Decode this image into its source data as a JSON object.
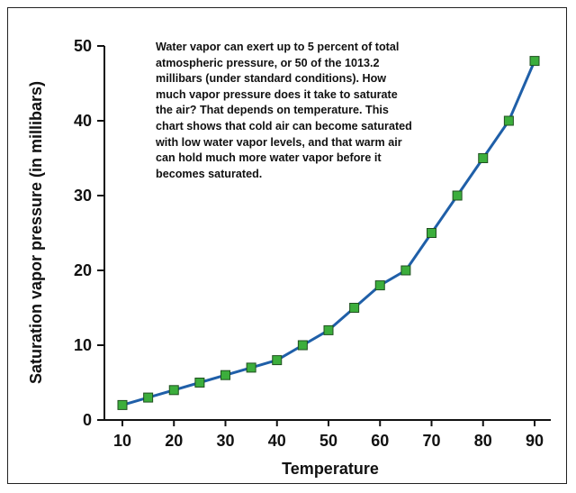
{
  "chart_data": {
    "type": "line",
    "title": "",
    "xlabel": "Temperature",
    "ylabel": "Saturation vapor pressure (in millibars)",
    "xlim": [
      10,
      90
    ],
    "ylim": [
      0,
      50
    ],
    "x_ticks": [
      "10",
      "20",
      "30",
      "40",
      "50",
      "60",
      "70",
      "80",
      "90"
    ],
    "y_ticks": [
      "0",
      "10",
      "20",
      "30",
      "40",
      "50"
    ],
    "grid": false,
    "legend": "none",
    "annotation": "Water vapor can exert up to 5 percent of total atmospheric pressure, or 50 of the 1013.2 millibars (under standard conditions). How much vapor pressure does it take to saturate the air? That depends on temperature. This chart shows that cold air can become saturated with low water vapor levels, and that warm air can hold much more water vapor before it becomes saturated.",
    "series": [
      {
        "x": [
          10,
          15,
          20,
          25,
          30,
          35,
          40,
          45,
          50,
          55,
          60,
          65,
          70,
          75,
          80,
          85,
          90
        ],
        "y": [
          2,
          3,
          4,
          5,
          6,
          7,
          8,
          10,
          12,
          15,
          18,
          20,
          25,
          30,
          35,
          40,
          48
        ],
        "line_color": "#1f5fa8",
        "marker_color": "#3cae3c",
        "marker_edge": "#1f4f1f",
        "marker": "square"
      }
    ]
  }
}
